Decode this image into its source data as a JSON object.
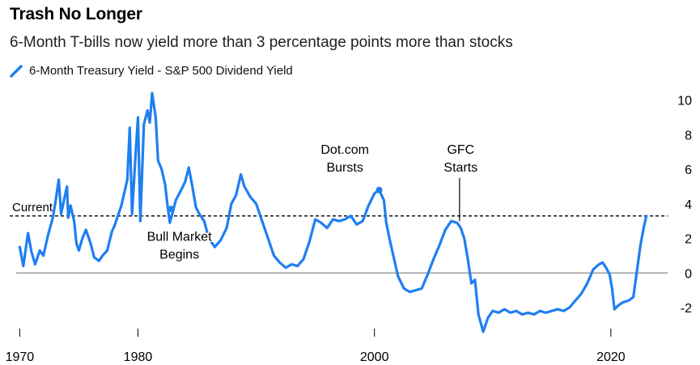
{
  "title": "Trash No Longer",
  "subtitle": "6-Month T-bills now yield more than 3 percentage points more than stocks",
  "colors": {
    "series": "#1f7ff0",
    "zero_line": "#888888",
    "reference_line": "#000000",
    "text": "#000000"
  },
  "chart_data": {
    "type": "line",
    "series": [
      {
        "name": "6-Month Treasury Yield - S&P 500 Dividend Yield",
        "points": [
          [
            1970.0,
            1.5
          ],
          [
            1970.3,
            0.4
          ],
          [
            1970.7,
            2.3
          ],
          [
            1971.0,
            1.2
          ],
          [
            1971.3,
            0.5
          ],
          [
            1971.7,
            1.3
          ],
          [
            1972.0,
            1.0
          ],
          [
            1972.4,
            2.2
          ],
          [
            1972.8,
            3.2
          ],
          [
            1973.0,
            4.0
          ],
          [
            1973.3,
            5.4
          ],
          [
            1973.5,
            3.4
          ],
          [
            1973.8,
            4.4
          ],
          [
            1974.0,
            5.0
          ],
          [
            1974.1,
            3.2
          ],
          [
            1974.3,
            3.9
          ],
          [
            1974.6,
            3.0
          ],
          [
            1974.8,
            1.7
          ],
          [
            1975.0,
            1.3
          ],
          [
            1975.3,
            2.0
          ],
          [
            1975.6,
            2.5
          ],
          [
            1976.0,
            1.7
          ],
          [
            1976.3,
            0.9
          ],
          [
            1976.7,
            0.7
          ],
          [
            1977.0,
            1.0
          ],
          [
            1977.4,
            1.3
          ],
          [
            1977.8,
            2.4
          ],
          [
            1978.0,
            2.7
          ],
          [
            1978.3,
            3.3
          ],
          [
            1978.6,
            3.9
          ],
          [
            1978.9,
            4.8
          ],
          [
            1979.1,
            5.4
          ],
          [
            1979.3,
            8.4
          ],
          [
            1979.5,
            3.4
          ],
          [
            1979.8,
            6.9
          ],
          [
            1980.0,
            9.0
          ],
          [
            1980.2,
            3.0
          ],
          [
            1980.5,
            8.6
          ],
          [
            1980.8,
            9.4
          ],
          [
            1981.0,
            8.7
          ],
          [
            1981.2,
            10.4
          ],
          [
            1981.5,
            9.0
          ],
          [
            1981.7,
            6.5
          ],
          [
            1982.0,
            6.0
          ],
          [
            1982.3,
            5.1
          ],
          [
            1982.5,
            3.9
          ],
          [
            1982.7,
            2.9
          ],
          [
            1982.9,
            3.4
          ],
          [
            1983.2,
            4.2
          ],
          [
            1983.5,
            4.6
          ],
          [
            1983.8,
            5.0
          ],
          [
            1984.0,
            5.3
          ],
          [
            1984.3,
            6.1
          ],
          [
            1984.6,
            5.0
          ],
          [
            1984.9,
            3.8
          ],
          [
            1985.2,
            3.4
          ],
          [
            1985.6,
            3.0
          ],
          [
            1986.0,
            2.0
          ],
          [
            1986.5,
            1.5
          ],
          [
            1987.0,
            1.9
          ],
          [
            1987.5,
            2.6
          ],
          [
            1987.9,
            4.0
          ],
          [
            1988.3,
            4.5
          ],
          [
            1988.7,
            5.7
          ],
          [
            1989.0,
            5.0
          ],
          [
            1989.5,
            4.4
          ],
          [
            1990.0,
            4.0
          ],
          [
            1990.5,
            3.0
          ],
          [
            1991.0,
            2.0
          ],
          [
            1991.5,
            1.0
          ],
          [
            1992.0,
            0.6
          ],
          [
            1992.5,
            0.3
          ],
          [
            1993.0,
            0.5
          ],
          [
            1993.5,
            0.4
          ],
          [
            1994.0,
            0.8
          ],
          [
            1994.5,
            1.8
          ],
          [
            1995.0,
            3.1
          ],
          [
            1995.5,
            2.9
          ],
          [
            1996.0,
            2.6
          ],
          [
            1996.5,
            3.1
          ],
          [
            1997.0,
            3.0
          ],
          [
            1997.5,
            3.1
          ],
          [
            1998.0,
            3.3
          ],
          [
            1998.5,
            2.8
          ],
          [
            1999.0,
            3.0
          ],
          [
            1999.5,
            3.9
          ],
          [
            2000.0,
            4.6
          ],
          [
            2000.4,
            4.8
          ],
          [
            2000.8,
            4.2
          ],
          [
            2001.0,
            2.9
          ],
          [
            2001.3,
            1.9
          ],
          [
            2001.7,
            0.7
          ],
          [
            2002.0,
            -0.2
          ],
          [
            2002.5,
            -0.9
          ],
          [
            2003.0,
            -1.1
          ],
          [
            2003.5,
            -1.0
          ],
          [
            2004.0,
            -0.9
          ],
          [
            2004.5,
            -0.1
          ],
          [
            2005.0,
            0.8
          ],
          [
            2005.5,
            1.6
          ],
          [
            2006.0,
            2.5
          ],
          [
            2006.5,
            3.0
          ],
          [
            2007.0,
            2.9
          ],
          [
            2007.3,
            2.6
          ],
          [
            2007.6,
            2.0
          ],
          [
            2007.9,
            0.8
          ],
          [
            2008.2,
            -0.6
          ],
          [
            2008.5,
            -0.4
          ],
          [
            2008.8,
            -2.4
          ],
          [
            2009.2,
            -3.4
          ],
          [
            2009.6,
            -2.6
          ],
          [
            2010.0,
            -2.2
          ],
          [
            2010.5,
            -2.3
          ],
          [
            2011.0,
            -2.1
          ],
          [
            2011.5,
            -2.3
          ],
          [
            2012.0,
            -2.2
          ],
          [
            2012.5,
            -2.4
          ],
          [
            2013.0,
            -2.3
          ],
          [
            2013.5,
            -2.4
          ],
          [
            2014.0,
            -2.2
          ],
          [
            2014.5,
            -2.3
          ],
          [
            2015.0,
            -2.2
          ],
          [
            2015.5,
            -2.1
          ],
          [
            2016.0,
            -2.2
          ],
          [
            2016.5,
            -2.0
          ],
          [
            2017.0,
            -1.6
          ],
          [
            2017.5,
            -1.2
          ],
          [
            2018.0,
            -0.6
          ],
          [
            2018.5,
            0.2
          ],
          [
            2019.0,
            0.5
          ],
          [
            2019.3,
            0.6
          ],
          [
            2019.6,
            0.3
          ],
          [
            2019.9,
            -0.1
          ],
          [
            2020.1,
            -0.9
          ],
          [
            2020.3,
            -2.1
          ],
          [
            2020.6,
            -1.9
          ],
          [
            2021.0,
            -1.7
          ],
          [
            2021.5,
            -1.6
          ],
          [
            2021.9,
            -1.4
          ],
          [
            2022.2,
            0.1
          ],
          [
            2022.5,
            1.6
          ],
          [
            2022.8,
            2.7
          ],
          [
            2023.0,
            3.3
          ]
        ]
      }
    ],
    "ylim": [
      -3.5,
      10.5
    ],
    "yticks": [
      10,
      8,
      6,
      4,
      2,
      0,
      -2
    ],
    "ytick_labels": [
      "10",
      "8",
      "6",
      "4",
      "2",
      "0",
      "-2"
    ],
    "xlim": [
      1969.7,
      2024.8
    ],
    "xticks": [
      1970,
      1980,
      2000,
      2020
    ],
    "xtick_labels": [
      "1970",
      "1980",
      "2000",
      "2020"
    ],
    "current_value": 3.3,
    "current_label": "Current",
    "annotations": [
      {
        "id": "bull",
        "lines": [
          "Bull Market",
          "Begins"
        ],
        "x": 1982.8,
        "y": 3.7,
        "label_anchor_x": 1983.5,
        "label_y": 2.1
      },
      {
        "id": "dotcom",
        "lines": [
          "Dot.com",
          "Bursts"
        ],
        "x": 2000.4,
        "y": 4.8,
        "label_anchor_x": 1997.5,
        "label_y": 6.9
      },
      {
        "id": "gfc",
        "lines": [
          "GFC",
          "Starts"
        ],
        "x": 2007.2,
        "y": 3.0,
        "label_anchor_x": 2007.3,
        "label_y": 6.9
      }
    ],
    "grid": false,
    "legend_position": "top-left"
  }
}
